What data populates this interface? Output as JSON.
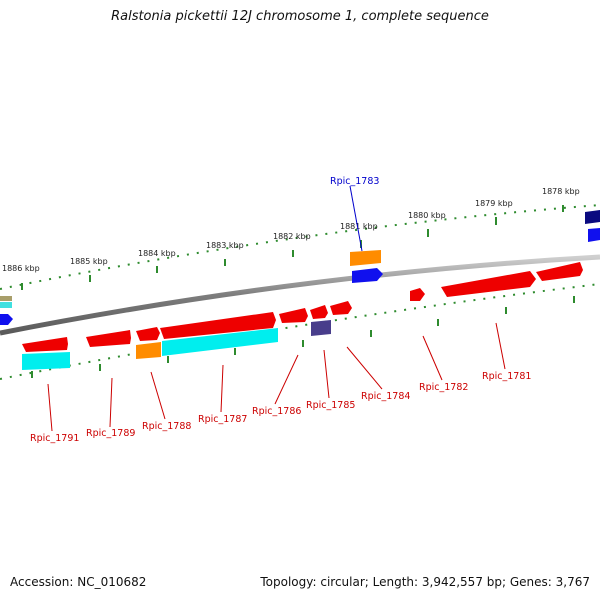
{
  "title": "Ralstonia pickettii 12J chromosome 1, complete sequence",
  "footer": {
    "accession": "Accession: NC_010682",
    "summary": "Topology: circular; Length: 3,942,557 bp; Genes: 3,767"
  },
  "colors": {
    "label_red": "#cc0000",
    "label_blue": "#0000cc",
    "tick_green": "#2e8b2e",
    "backbone": "#8a8a8a"
  },
  "ticks": [
    "1886 kbp",
    "1885 kbp",
    "1884 kbp",
    "1883 kbp",
    "1882 kbp",
    "1881 kbp",
    "1880 kbp",
    "1879 kbp",
    "1878 kbp"
  ],
  "labels": [
    {
      "text": "Rpic_1783",
      "color": "blue"
    },
    {
      "text": "Rpic_1791",
      "color": "red"
    },
    {
      "text": "Rpic_1789",
      "color": "red"
    },
    {
      "text": "Rpic_1788",
      "color": "red"
    },
    {
      "text": "Rpic_1787",
      "color": "red"
    },
    {
      "text": "Rpic_1786",
      "color": "red"
    },
    {
      "text": "Rpic_1785",
      "color": "red"
    },
    {
      "text": "Rpic_1784",
      "color": "red"
    },
    {
      "text": "Rpic_1782",
      "color": "red"
    },
    {
      "text": "Rpic_1781",
      "color": "red"
    }
  ]
}
